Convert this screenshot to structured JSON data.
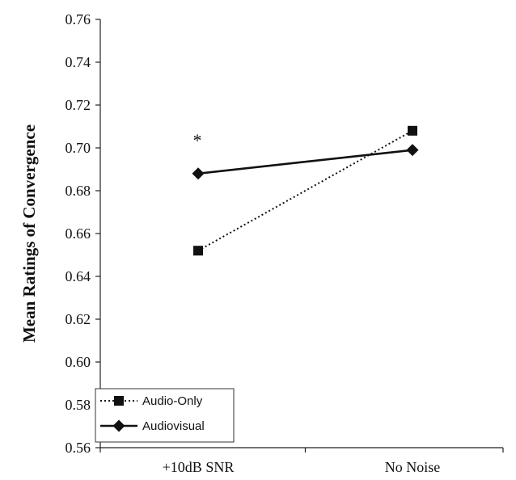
{
  "chart_data": {
    "type": "line",
    "categories": [
      "+10dB SNR",
      "No Noise"
    ],
    "series": [
      {
        "name": "Audio-Only",
        "values": [
          0.652,
          0.708
        ],
        "line_style": "dotted",
        "marker": "square",
        "color": "#111111"
      },
      {
        "name": "Audiovisual",
        "values": [
          0.688,
          0.699
        ],
        "line_style": "solid",
        "marker": "diamond",
        "color": "#111111"
      }
    ],
    "ylabel": "Mean Ratings of Convergence",
    "xlabel": "",
    "ylim": [
      0.56,
      0.76
    ],
    "yticks": [
      "0.56",
      "0.58",
      "0.60",
      "0.62",
      "0.64",
      "0.66",
      "0.68",
      "0.70",
      "0.72",
      "0.74",
      "0.76"
    ],
    "grid": false,
    "legend_position": "bottom-left",
    "annotations": [
      {
        "text": "*",
        "category": "+10dB SNR",
        "y": 0.706
      }
    ]
  }
}
